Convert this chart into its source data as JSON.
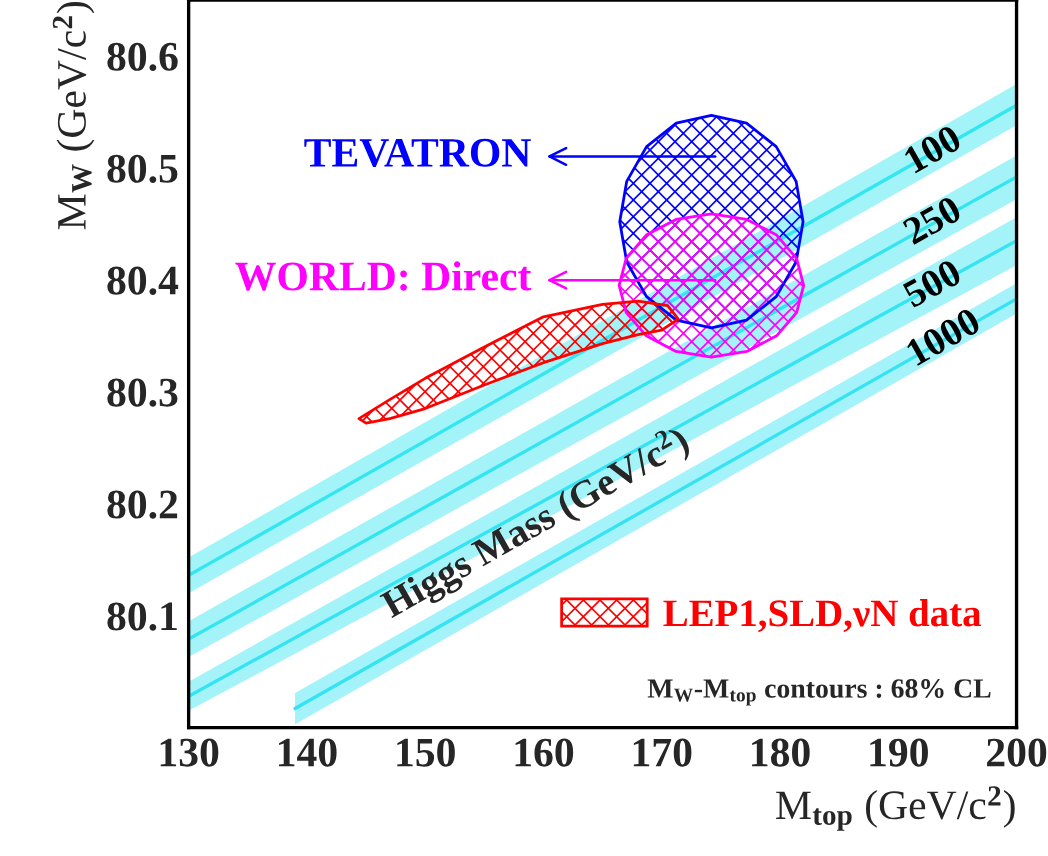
{
  "chart_data": {
    "type": "area",
    "xlabel": "M$_{top}$ (GeV/c$^{2}$)",
    "ylabel": "M$_{W}$ (GeV/c$^{2}$)",
    "xlim": [
      130,
      200
    ],
    "ylim": [
      80.0,
      80.65
    ],
    "xticks": [
      130,
      140,
      150,
      160,
      170,
      180,
      190,
      200
    ],
    "yticks": [
      80.1,
      80.2,
      80.3,
      80.4,
      80.5,
      80.6
    ],
    "grid": false,
    "legend": "bottom right",
    "series": [
      {
        "type": "line",
        "name": "100",
        "color": "#33e6f0",
        "x": [
          130,
          200
        ],
        "values": [
          80.136,
          80.556
        ],
        "lower": [
          80.12,
          80.538
        ],
        "upper": [
          80.152,
          80.575
        ]
      },
      {
        "type": "line",
        "name": "250",
        "color": "#34e5f1",
        "x": [
          130,
          200
        ],
        "values": [
          80.079,
          80.492
        ],
        "lower": [
          80.063,
          80.472
        ],
        "upper": [
          80.095,
          80.511
        ]
      },
      {
        "type": "line",
        "name": "500",
        "color": "#35e4f2",
        "x": [
          130,
          200
        ],
        "values": [
          80.028,
          80.435
        ],
        "lower": [
          80.015,
          80.413
        ],
        "upper": [
          80.041,
          80.456
        ]
      },
      {
        "type": "line",
        "name": "1000",
        "color": "#36e3f3",
        "x": [
          139,
          200
        ],
        "values": [
          80.017,
          80.383
        ],
        "lower": [
          80.003,
          80.37
        ],
        "upper": [
          80.031,
          80.397
        ]
      },
      {
        "color": "#0000ff",
        "x": [
          181.95,
          181.36,
          179.68,
          177.17,
          174.2,
          171.23,
          168.72,
          167.04,
          166.45,
          167.04,
          168.72,
          171.23,
          174.2,
          177.17,
          179.68,
          181.36,
          181.95
        ],
        "values": [
          80.452,
          80.488,
          80.519,
          80.54,
          80.547,
          80.54,
          80.519,
          80.488,
          80.452,
          80.416,
          80.385,
          80.364,
          80.357,
          80.364,
          80.385,
          80.416,
          80.452
        ]
      },
      {
        "color": "#ff00ff",
        "x": [
          182.0,
          181.41,
          179.71,
          177.19,
          174.2,
          171.21,
          168.69,
          166.99,
          166.4,
          166.99,
          168.69,
          171.21,
          174.2,
          177.19,
          179.71,
          181.41,
          182.0
        ],
        "values": [
          80.395,
          80.419,
          80.44,
          80.454,
          80.459,
          80.454,
          80.44,
          80.419,
          80.395,
          80.371,
          80.35,
          80.336,
          80.331,
          80.336,
          80.35,
          80.371,
          80.395
        ]
      },
      {
        "name": "LEP1,SLD,νN data",
        "color": "#ff0000",
        "x": [
          144.4,
          147,
          150,
          155,
          160,
          165,
          168,
          170.5,
          171.4,
          170,
          168,
          165,
          160,
          155,
          150,
          147,
          145,
          144.4
        ],
        "values": [
          80.276,
          80.293,
          80.312,
          80.34,
          80.367,
          80.378,
          80.381,
          80.377,
          80.365,
          80.355,
          80.351,
          80.343,
          80.326,
          80.306,
          80.285,
          80.276,
          80.272,
          80.276
        ]
      }
    ],
    "annotations": [
      "TEVATRON",
      "WORLD: Direct",
      "Higgs Mass (GeV/c$^{2}$)",
      "M$_{W}$-M$_{top}$ contours : 68% CL"
    ]
  }
}
